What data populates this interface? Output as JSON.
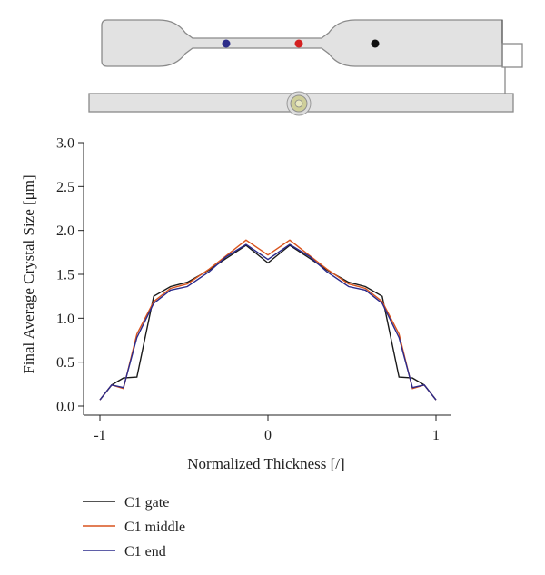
{
  "chart_data": {
    "type": "line",
    "xlabel": "Normalized Thickness [/]",
    "ylabel": "Final Average Crystal Size [μm]",
    "xlim": [
      -1,
      1
    ],
    "ylim": [
      0,
      3
    ],
    "x_ticks": [
      -1,
      0,
      1
    ],
    "x_tick_labels": [
      "-1",
      "0",
      "1"
    ],
    "y_ticks": [
      0,
      0.5,
      1,
      1.5,
      2,
      2.5,
      3
    ],
    "y_tick_labels": [
      "0.0",
      "0.5",
      "1.0",
      "1.5",
      "2.0",
      "2.5",
      "3.0"
    ],
    "grid": false,
    "legend_position": "below",
    "series": [
      {
        "name": "C1 gate",
        "color": "#1a1a1a",
        "x": [
          -1,
          -0.93,
          -0.86,
          -0.78,
          -0.68,
          -0.58,
          -0.48,
          -0.35,
          -0.25,
          -0.13,
          0,
          0.13,
          0.25,
          0.35,
          0.48,
          0.58,
          0.68,
          0.78,
          0.86,
          0.93,
          1
        ],
        "y": [
          0.07,
          0.24,
          0.32,
          0.33,
          1.25,
          1.36,
          1.41,
          1.55,
          1.68,
          1.83,
          1.63,
          1.83,
          1.68,
          1.55,
          1.41,
          1.36,
          1.25,
          0.33,
          0.32,
          0.24,
          0.07
        ]
      },
      {
        "name": "C1 middle",
        "color": "#d9541e",
        "x": [
          -1,
          -0.93,
          -0.86,
          -0.78,
          -0.68,
          -0.58,
          -0.48,
          -0.35,
          -0.25,
          -0.13,
          0,
          0.13,
          0.25,
          0.35,
          0.48,
          0.58,
          0.68,
          0.78,
          0.86,
          0.93,
          1
        ],
        "y": [
          0.07,
          0.24,
          0.2,
          0.82,
          1.19,
          1.34,
          1.39,
          1.56,
          1.71,
          1.89,
          1.72,
          1.89,
          1.71,
          1.56,
          1.39,
          1.34,
          1.19,
          0.82,
          0.2,
          0.24,
          0.07
        ]
      },
      {
        "name": "C1 end",
        "color": "#2a2a8c",
        "x": [
          -1,
          -0.93,
          -0.86,
          -0.78,
          -0.68,
          -0.58,
          -0.48,
          -0.35,
          -0.25,
          -0.13,
          0,
          0.13,
          0.25,
          0.35,
          0.48,
          0.58,
          0.68,
          0.78,
          0.86,
          0.93,
          1
        ],
        "y": [
          0.07,
          0.24,
          0.21,
          0.78,
          1.17,
          1.32,
          1.36,
          1.53,
          1.7,
          1.84,
          1.67,
          1.84,
          1.7,
          1.53,
          1.36,
          1.32,
          1.17,
          0.78,
          0.21,
          0.24,
          0.07
        ]
      }
    ]
  },
  "specimen_diagram": {
    "fill_color": "#e2e2e2",
    "stroke_color": "#8a8a8a",
    "markers": [
      {
        "name": "gate",
        "color": "#2c2c8a"
      },
      {
        "name": "middle",
        "color": "#d42020"
      },
      {
        "name": "end",
        "color": "#111111"
      }
    ]
  }
}
